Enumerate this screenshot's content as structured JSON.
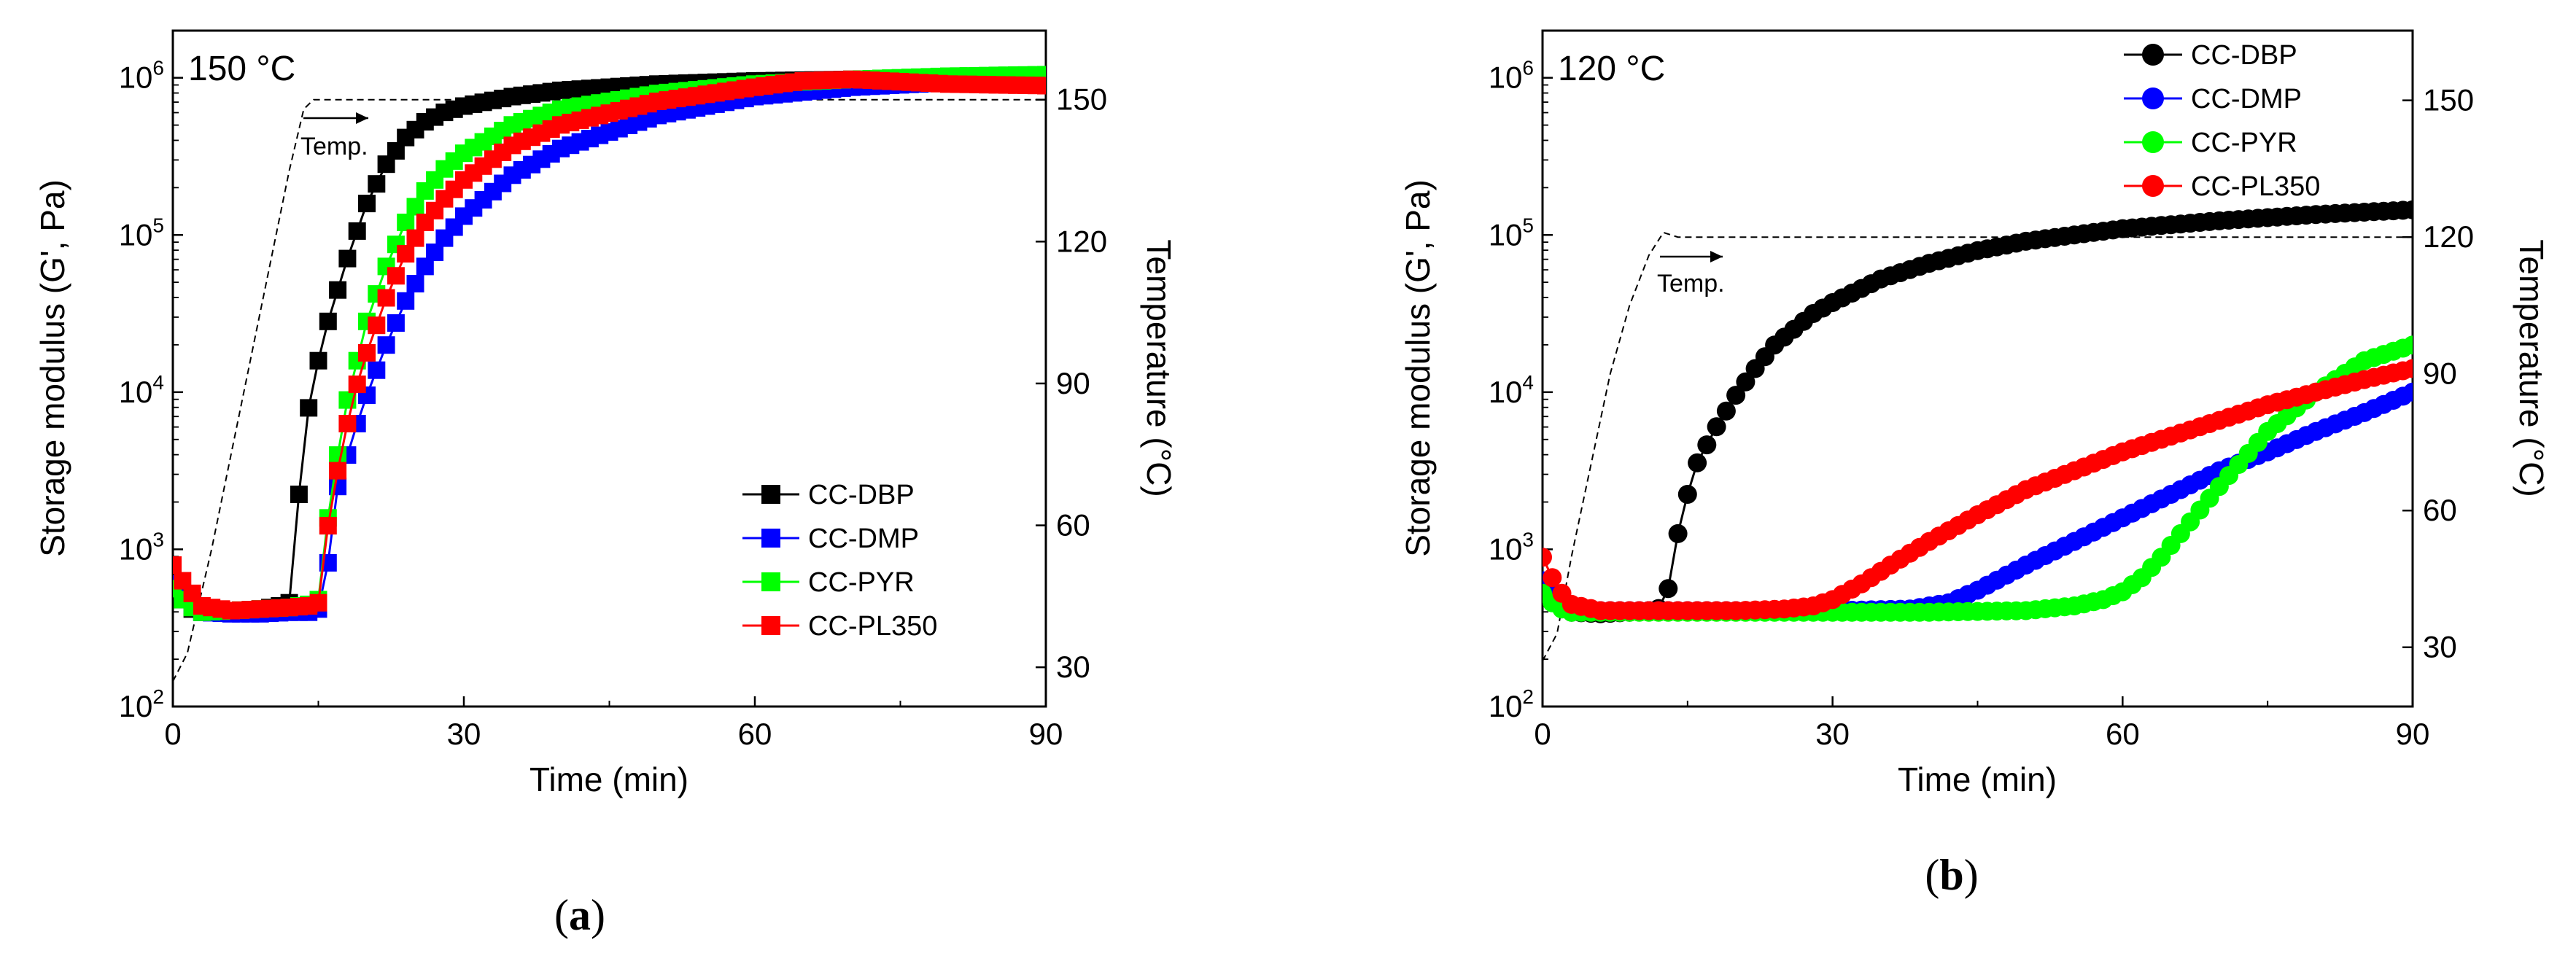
{
  "chart_data": [
    {
      "id": "a",
      "panel_label": "a",
      "type": "line",
      "condition": "150 °C",
      "xlabel": "Time (min)",
      "ylabel": "Storage modulus (G', Pa)",
      "y2label": "Temperature (°C)",
      "xlim": [
        0,
        90
      ],
      "ylog_exp": [
        2,
        6.3
      ],
      "y2lim": [
        21.7,
        164.6
      ],
      "xticks": [
        0,
        30,
        60,
        90
      ],
      "yticks_exp": [
        2,
        3,
        4,
        5,
        6
      ],
      "y2ticks": [
        30,
        60,
        90,
        120,
        150
      ],
      "marker": "square",
      "legend": {
        "position": "lower-right"
      },
      "temperature_annotation": "Temp.",
      "temperature_profile": [
        [
          0,
          27
        ],
        [
          1.5,
          33
        ],
        [
          4,
          55
        ],
        [
          7,
          85
        ],
        [
          10,
          115
        ],
        [
          12,
          135
        ],
        [
          13.5,
          148
        ],
        [
          14.5,
          150
        ],
        [
          90,
          150
        ]
      ],
      "series": [
        {
          "name": "CC-DBP",
          "color": "#000000",
          "points": [
            [
              0,
              2.8
            ],
            [
              1,
              2.68
            ],
            [
              2,
              2.62
            ],
            [
              3,
              2.6
            ],
            [
              6,
              2.6
            ],
            [
              9,
              2.62
            ],
            [
              11,
              2.64
            ],
            [
              12,
              2.66
            ],
            [
              12.5,
              2.85
            ],
            [
              13,
              3.35
            ],
            [
              13.5,
              3.6
            ],
            [
              14,
              3.9
            ],
            [
              15,
              4.2
            ],
            [
              16,
              4.45
            ],
            [
              17,
              4.65
            ],
            [
              18,
              4.85
            ],
            [
              20,
              5.2
            ],
            [
              22,
              5.45
            ],
            [
              24,
              5.62
            ],
            [
              26,
              5.72
            ],
            [
              28,
              5.78
            ],
            [
              30,
              5.82
            ],
            [
              35,
              5.88
            ],
            [
              40,
              5.92
            ],
            [
              50,
              5.96
            ],
            [
              60,
              5.98
            ],
            [
              70,
              5.99
            ],
            [
              80,
              5.99
            ],
            [
              90,
              5.99
            ]
          ]
        },
        {
          "name": "CC-DMP",
          "color": "#0000ff",
          "points": [
            [
              0,
              2.78
            ],
            [
              1,
              2.72
            ],
            [
              2,
              2.65
            ],
            [
              3,
              2.6
            ],
            [
              6,
              2.59
            ],
            [
              9,
              2.59
            ],
            [
              12,
              2.6
            ],
            [
              14,
              2.6
            ],
            [
              15,
              2.62
            ],
            [
              15.8,
              2.8
            ],
            [
              16.5,
              3.2
            ],
            [
              17,
              3.4
            ],
            [
              18,
              3.6
            ],
            [
              19,
              3.8
            ],
            [
              20,
              3.98
            ],
            [
              22,
              4.3
            ],
            [
              24,
              4.58
            ],
            [
              26,
              4.8
            ],
            [
              28,
              4.98
            ],
            [
              30,
              5.12
            ],
            [
              35,
              5.38
            ],
            [
              40,
              5.55
            ],
            [
              50,
              5.76
            ],
            [
              60,
              5.88
            ],
            [
              70,
              5.94
            ],
            [
              80,
              5.97
            ],
            [
              90,
              5.98
            ]
          ]
        },
        {
          "name": "CC-PYR",
          "color": "#00ff00",
          "points": [
            [
              0,
              2.75
            ],
            [
              1,
              2.68
            ],
            [
              2,
              2.63
            ],
            [
              3,
              2.6
            ],
            [
              6,
              2.61
            ],
            [
              9,
              2.62
            ],
            [
              12,
              2.63
            ],
            [
              14,
              2.65
            ],
            [
              15,
              2.68
            ],
            [
              15.5,
              2.85
            ],
            [
              16,
              3.2
            ],
            [
              17,
              3.6
            ],
            [
              18,
              3.95
            ],
            [
              19,
              4.2
            ],
            [
              20,
              4.45
            ],
            [
              22,
              4.8
            ],
            [
              24,
              5.08
            ],
            [
              26,
              5.28
            ],
            [
              28,
              5.42
            ],
            [
              30,
              5.52
            ],
            [
              35,
              5.7
            ],
            [
              40,
              5.8
            ],
            [
              50,
              5.9
            ],
            [
              60,
              5.96
            ],
            [
              70,
              5.99
            ],
            [
              80,
              6.01
            ],
            [
              90,
              6.02
            ]
          ]
        },
        {
          "name": "CC-PL350",
          "color": "#ff0000",
          "points": [
            [
              0,
              2.9
            ],
            [
              1,
              2.8
            ],
            [
              2,
              2.72
            ],
            [
              3,
              2.64
            ],
            [
              6,
              2.61
            ],
            [
              9,
              2.62
            ],
            [
              12,
              2.63
            ],
            [
              14,
              2.64
            ],
            [
              15,
              2.66
            ],
            [
              15.5,
              2.85
            ],
            [
              16,
              3.15
            ],
            [
              17,
              3.5
            ],
            [
              18,
              3.8
            ],
            [
              19,
              4.05
            ],
            [
              20,
              4.25
            ],
            [
              22,
              4.6
            ],
            [
              24,
              4.88
            ],
            [
              26,
              5.08
            ],
            [
              28,
              5.23
            ],
            [
              30,
              5.35
            ],
            [
              35,
              5.57
            ],
            [
              40,
              5.7
            ],
            [
              50,
              5.85
            ],
            [
              60,
              5.94
            ],
            [
              65,
              5.98
            ],
            [
              70,
              5.99
            ],
            [
              80,
              5.96
            ],
            [
              90,
              5.95
            ]
          ]
        }
      ]
    },
    {
      "id": "b",
      "panel_label": "b",
      "type": "line",
      "condition": "120 °C",
      "xlabel": "Time (min)",
      "ylabel": "Storage modulus (G', Pa)",
      "y2label": "Temperature (°C)",
      "xlim": [
        0,
        90
      ],
      "ylog_exp": [
        2,
        6.3
      ],
      "y2lim": [
        17,
        165.3
      ],
      "xticks": [
        0,
        30,
        60,
        90
      ],
      "yticks_exp": [
        2,
        3,
        4,
        5,
        6
      ],
      "y2ticks": [
        30,
        60,
        90,
        120,
        150
      ],
      "marker": "circle",
      "legend": {
        "position": "top-right"
      },
      "temperature_annotation": "Temp.",
      "temperature_profile": [
        [
          0,
          27
        ],
        [
          1.5,
          33
        ],
        [
          3,
          50
        ],
        [
          5,
          70
        ],
        [
          7,
          90
        ],
        [
          9,
          105
        ],
        [
          11,
          116
        ],
        [
          12.5,
          121
        ],
        [
          14,
          120
        ],
        [
          90,
          120
        ]
      ],
      "series": [
        {
          "name": "CC-DBP",
          "color": "#000000",
          "points": [
            [
              0,
              2.78
            ],
            [
              1,
              2.7
            ],
            [
              2,
              2.64
            ],
            [
              3,
              2.6
            ],
            [
              6,
              2.59
            ],
            [
              9,
              2.6
            ],
            [
              11,
              2.61
            ],
            [
              12.5,
              2.63
            ],
            [
              13,
              2.75
            ],
            [
              14,
              3.1
            ],
            [
              15,
              3.35
            ],
            [
              16,
              3.55
            ],
            [
              18,
              3.78
            ],
            [
              20,
              3.98
            ],
            [
              22,
              4.15
            ],
            [
              24,
              4.3
            ],
            [
              26,
              4.4
            ],
            [
              28,
              4.5
            ],
            [
              30,
              4.57
            ],
            [
              35,
              4.72
            ],
            [
              40,
              4.82
            ],
            [
              45,
              4.9
            ],
            [
              50,
              4.96
            ],
            [
              60,
              5.04
            ],
            [
              70,
              5.09
            ],
            [
              80,
              5.13
            ],
            [
              90,
              5.16
            ]
          ]
        },
        {
          "name": "CC-DMP",
          "color": "#0000ff",
          "points": [
            [
              0,
              2.8
            ],
            [
              1,
              2.72
            ],
            [
              2,
              2.66
            ],
            [
              3,
              2.62
            ],
            [
              6,
              2.61
            ],
            [
              10,
              2.61
            ],
            [
              20,
              2.61
            ],
            [
              30,
              2.61
            ],
            [
              38,
              2.62
            ],
            [
              42,
              2.66
            ],
            [
              45,
              2.74
            ],
            [
              50,
              2.9
            ],
            [
              55,
              3.05
            ],
            [
              60,
              3.2
            ],
            [
              65,
              3.35
            ],
            [
              70,
              3.5
            ],
            [
              75,
              3.62
            ],
            [
              80,
              3.75
            ],
            [
              85,
              3.87
            ],
            [
              90,
              4.0
            ]
          ]
        },
        {
          "name": "CC-PYR",
          "color": "#00ff00",
          "points": [
            [
              0,
              2.72
            ],
            [
              1,
              2.66
            ],
            [
              2,
              2.62
            ],
            [
              3,
              2.6
            ],
            [
              6,
              2.6
            ],
            [
              10,
              2.6
            ],
            [
              20,
              2.6
            ],
            [
              30,
              2.6
            ],
            [
              40,
              2.6
            ],
            [
              50,
              2.61
            ],
            [
              55,
              2.64
            ],
            [
              58,
              2.68
            ],
            [
              60,
              2.73
            ],
            [
              62,
              2.82
            ],
            [
              64,
              2.95
            ],
            [
              66,
              3.1
            ],
            [
              70,
              3.4
            ],
            [
              75,
              3.75
            ],
            [
              80,
              4.0
            ],
            [
              85,
              4.2
            ],
            [
              90,
              4.3
            ]
          ]
        },
        {
          "name": "CC-PL350",
          "color": "#ff0000",
          "points": [
            [
              0,
              2.95
            ],
            [
              1,
              2.82
            ],
            [
              2,
              2.72
            ],
            [
              3,
              2.65
            ],
            [
              6,
              2.61
            ],
            [
              10,
              2.61
            ],
            [
              20,
              2.61
            ],
            [
              25,
              2.62
            ],
            [
              28,
              2.64
            ],
            [
              30,
              2.68
            ],
            [
              33,
              2.78
            ],
            [
              36,
              2.9
            ],
            [
              40,
              3.05
            ],
            [
              45,
              3.22
            ],
            [
              50,
              3.38
            ],
            [
              55,
              3.5
            ],
            [
              60,
              3.62
            ],
            [
              65,
              3.72
            ],
            [
              70,
              3.82
            ],
            [
              75,
              3.92
            ],
            [
              80,
              4.0
            ],
            [
              85,
              4.08
            ],
            [
              90,
              4.15
            ]
          ]
        }
      ]
    }
  ]
}
